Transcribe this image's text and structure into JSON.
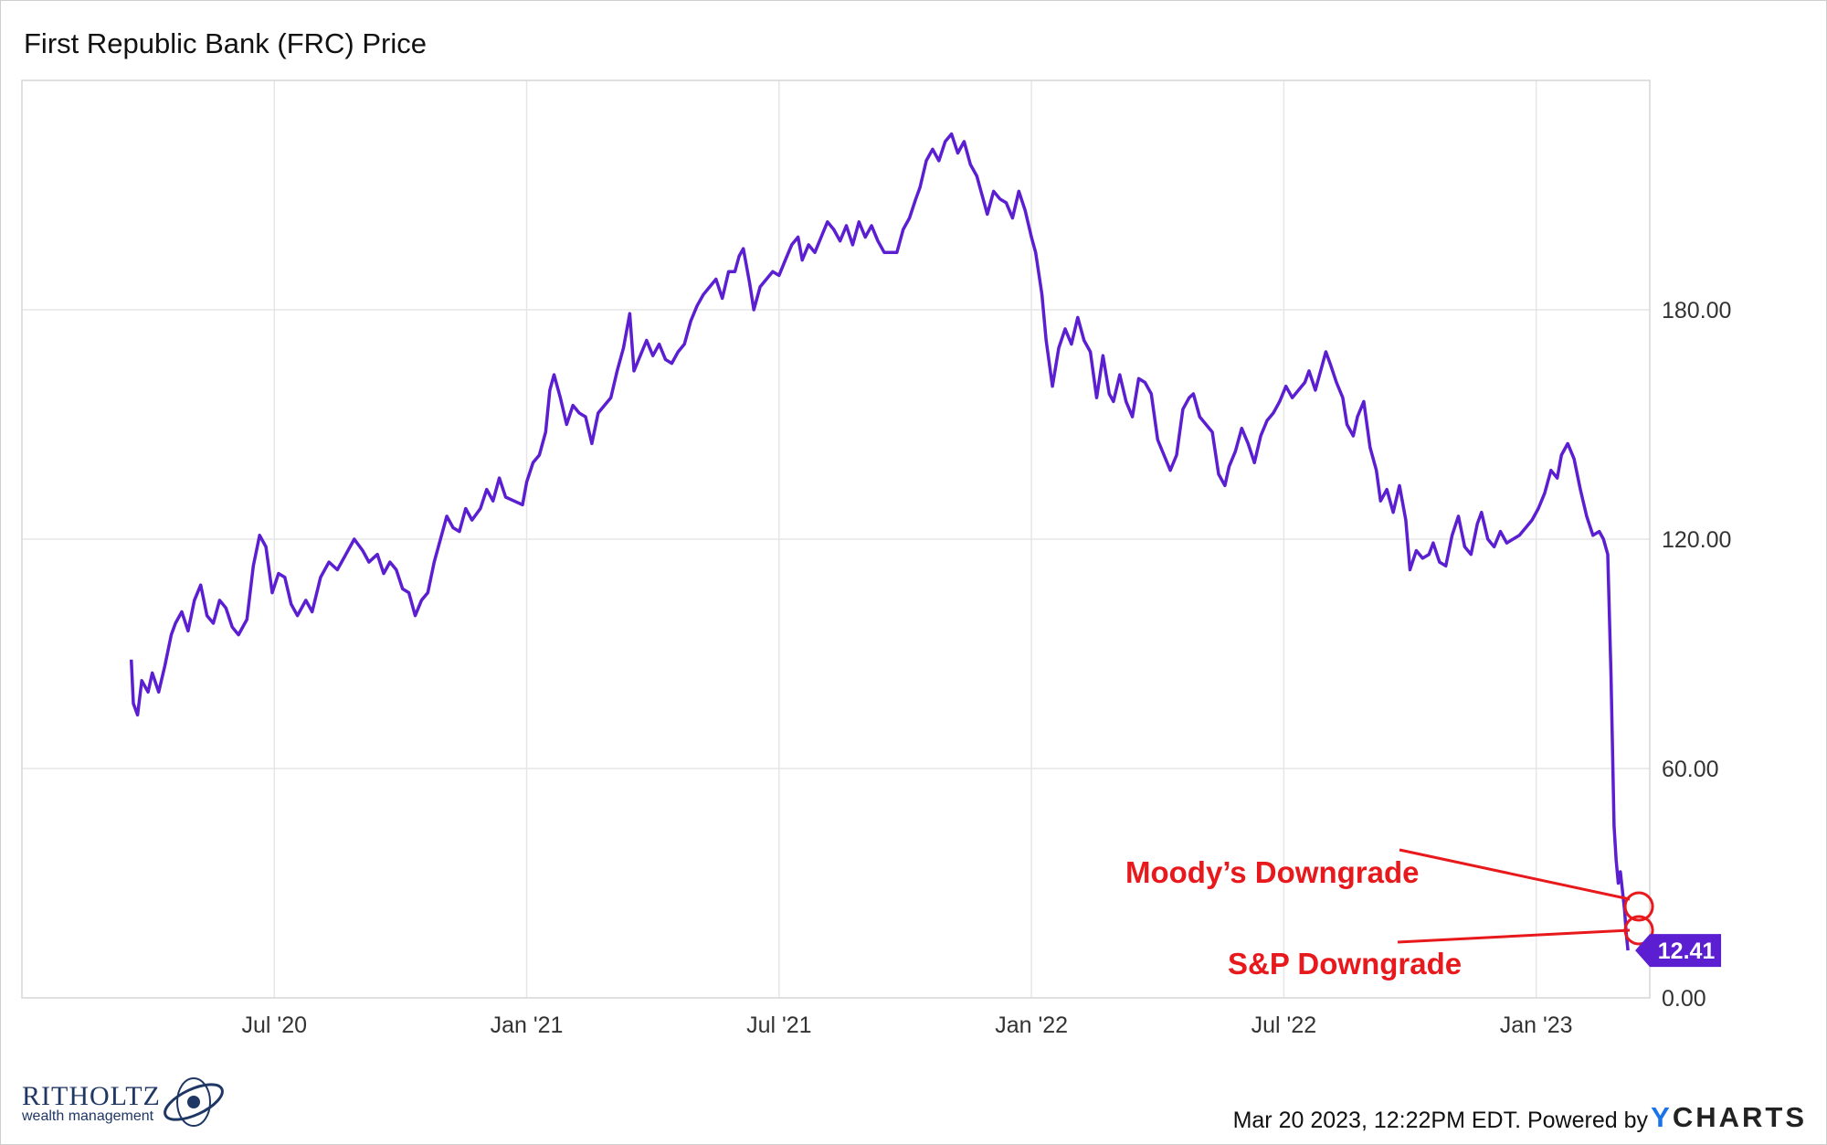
{
  "chart_data": {
    "type": "line",
    "title": "First Republic Bank (FRC) Price",
    "series_name": "FRC Price",
    "line_color": "#5b1ed1",
    "ylim": [
      0,
      240
    ],
    "y_ticks": [
      0,
      60,
      120,
      180
    ],
    "y_tick_labels": [
      "0.00",
      "60.00",
      "120.00",
      "180.00"
    ],
    "x_range_months": [
      0,
      38.7
    ],
    "x_ticks": [
      {
        "label": "Jul '20",
        "month": 6
      },
      {
        "label": "Jan '21",
        "month": 12
      },
      {
        "label": "Jul '21",
        "month": 18
      },
      {
        "label": "Jan '22",
        "month": 24
      },
      {
        "label": "Jul '22",
        "month": 30
      },
      {
        "label": "Jan '23",
        "month": 36
      }
    ],
    "points": [
      [
        2.6,
        88.5
      ],
      [
        2.65,
        77
      ],
      [
        2.75,
        74
      ],
      [
        2.85,
        83
      ],
      [
        3.0,
        80
      ],
      [
        3.1,
        85
      ],
      [
        3.25,
        80
      ],
      [
        3.4,
        87
      ],
      [
        3.55,
        95
      ],
      [
        3.65,
        98
      ],
      [
        3.8,
        101
      ],
      [
        3.95,
        96
      ],
      [
        4.1,
        104
      ],
      [
        4.25,
        108
      ],
      [
        4.4,
        100
      ],
      [
        4.55,
        98
      ],
      [
        4.7,
        104
      ],
      [
        4.85,
        102
      ],
      [
        5.0,
        97
      ],
      [
        5.15,
        95
      ],
      [
        5.35,
        99
      ],
      [
        5.5,
        113
      ],
      [
        5.65,
        121
      ],
      [
        5.8,
        118
      ],
      [
        5.95,
        106
      ],
      [
        6.1,
        111
      ],
      [
        6.25,
        110
      ],
      [
        6.4,
        103
      ],
      [
        6.55,
        100
      ],
      [
        6.75,
        104
      ],
      [
        6.9,
        101
      ],
      [
        7.1,
        110
      ],
      [
        7.3,
        114
      ],
      [
        7.5,
        112
      ],
      [
        7.7,
        116
      ],
      [
        7.9,
        120
      ],
      [
        8.1,
        117
      ],
      [
        8.25,
        114
      ],
      [
        8.45,
        116
      ],
      [
        8.6,
        111
      ],
      [
        8.75,
        114
      ],
      [
        8.9,
        112
      ],
      [
        9.05,
        107
      ],
      [
        9.2,
        106
      ],
      [
        9.35,
        100
      ],
      [
        9.5,
        104
      ],
      [
        9.65,
        106
      ],
      [
        9.8,
        114
      ],
      [
        9.95,
        120
      ],
      [
        10.1,
        126
      ],
      [
        10.25,
        123
      ],
      [
        10.4,
        122
      ],
      [
        10.55,
        128
      ],
      [
        10.7,
        125
      ],
      [
        10.9,
        128
      ],
      [
        11.05,
        133
      ],
      [
        11.2,
        130
      ],
      [
        11.35,
        136
      ],
      [
        11.5,
        131
      ],
      [
        11.7,
        130
      ],
      [
        11.9,
        129
      ],
      [
        12.0,
        135
      ],
      [
        12.15,
        140
      ],
      [
        12.3,
        142
      ],
      [
        12.45,
        148
      ],
      [
        12.55,
        159
      ],
      [
        12.65,
        163
      ],
      [
        12.8,
        157
      ],
      [
        12.95,
        150
      ],
      [
        13.1,
        155
      ],
      [
        13.25,
        153
      ],
      [
        13.4,
        152
      ],
      [
        13.55,
        145
      ],
      [
        13.7,
        153
      ],
      [
        13.85,
        155
      ],
      [
        14.0,
        157
      ],
      [
        14.15,
        164
      ],
      [
        14.3,
        170
      ],
      [
        14.45,
        179
      ],
      [
        14.55,
        164
      ],
      [
        14.7,
        168
      ],
      [
        14.85,
        172
      ],
      [
        15.0,
        168
      ],
      [
        15.15,
        171
      ],
      [
        15.3,
        167
      ],
      [
        15.45,
        166
      ],
      [
        15.6,
        169
      ],
      [
        15.75,
        171
      ],
      [
        15.9,
        177
      ],
      [
        16.05,
        181
      ],
      [
        16.2,
        184
      ],
      [
        16.35,
        186
      ],
      [
        16.5,
        188
      ],
      [
        16.65,
        183
      ],
      [
        16.8,
        190
      ],
      [
        16.95,
        190
      ],
      [
        17.05,
        194
      ],
      [
        17.15,
        196
      ],
      [
        17.3,
        187
      ],
      [
        17.4,
        180
      ],
      [
        17.55,
        186
      ],
      [
        17.7,
        188
      ],
      [
        17.85,
        190
      ],
      [
        18.0,
        189
      ],
      [
        18.15,
        193
      ],
      [
        18.3,
        197
      ],
      [
        18.45,
        199
      ],
      [
        18.55,
        193
      ],
      [
        18.7,
        197
      ],
      [
        18.85,
        195
      ],
      [
        19.0,
        199
      ],
      [
        19.15,
        203
      ],
      [
        19.3,
        201
      ],
      [
        19.45,
        198
      ],
      [
        19.6,
        202
      ],
      [
        19.75,
        197
      ],
      [
        19.9,
        203
      ],
      [
        20.05,
        199
      ],
      [
        20.2,
        202
      ],
      [
        20.35,
        198
      ],
      [
        20.5,
        195
      ],
      [
        20.65,
        195
      ],
      [
        20.8,
        195
      ],
      [
        20.95,
        201
      ],
      [
        21.1,
        204
      ],
      [
        21.25,
        209
      ],
      [
        21.35,
        212
      ],
      [
        21.5,
        219
      ],
      [
        21.65,
        222
      ],
      [
        21.8,
        219
      ],
      [
        21.95,
        224
      ],
      [
        22.1,
        226
      ],
      [
        22.25,
        221
      ],
      [
        22.4,
        224
      ],
      [
        22.55,
        218
      ],
      [
        22.7,
        215
      ],
      [
        22.85,
        209
      ],
      [
        22.95,
        205
      ],
      [
        23.1,
        211
      ],
      [
        23.25,
        209
      ],
      [
        23.4,
        208
      ],
      [
        23.55,
        204
      ],
      [
        23.7,
        211
      ],
      [
        23.85,
        206
      ],
      [
        24.0,
        199
      ],
      [
        24.1,
        195
      ],
      [
        24.25,
        184
      ],
      [
        24.35,
        172
      ],
      [
        24.5,
        160
      ],
      [
        24.65,
        170
      ],
      [
        24.8,
        175
      ],
      [
        24.95,
        171
      ],
      [
        25.1,
        178
      ],
      [
        25.25,
        172
      ],
      [
        25.4,
        169
      ],
      [
        25.55,
        157
      ],
      [
        25.7,
        168
      ],
      [
        25.85,
        158
      ],
      [
        25.95,
        156
      ],
      [
        26.1,
        163
      ],
      [
        26.25,
        156
      ],
      [
        26.4,
        152
      ],
      [
        26.55,
        162
      ],
      [
        26.7,
        161
      ],
      [
        26.85,
        158
      ],
      [
        27.0,
        146
      ],
      [
        27.15,
        142
      ],
      [
        27.3,
        138
      ],
      [
        27.45,
        142
      ],
      [
        27.6,
        154
      ],
      [
        27.75,
        157
      ],
      [
        27.85,
        158
      ],
      [
        28.0,
        152
      ],
      [
        28.15,
        150
      ],
      [
        28.3,
        148
      ],
      [
        28.45,
        137
      ],
      [
        28.6,
        134
      ],
      [
        28.7,
        139
      ],
      [
        28.85,
        143
      ],
      [
        29.0,
        149
      ],
      [
        29.15,
        145
      ],
      [
        29.3,
        140
      ],
      [
        29.45,
        147
      ],
      [
        29.6,
        151
      ],
      [
        29.75,
        153
      ],
      [
        29.9,
        156
      ],
      [
        30.05,
        160
      ],
      [
        30.2,
        157
      ],
      [
        30.35,
        159
      ],
      [
        30.5,
        161
      ],
      [
        30.6,
        164
      ],
      [
        30.75,
        159
      ],
      [
        30.9,
        165
      ],
      [
        31.0,
        169
      ],
      [
        31.1,
        166
      ],
      [
        31.25,
        161
      ],
      [
        31.4,
        157
      ],
      [
        31.5,
        150
      ],
      [
        31.65,
        147
      ],
      [
        31.75,
        152
      ],
      [
        31.9,
        156
      ],
      [
        32.05,
        144
      ],
      [
        32.2,
        138
      ],
      [
        32.3,
        130
      ],
      [
        32.45,
        133
      ],
      [
        32.6,
        127
      ],
      [
        32.75,
        134
      ],
      [
        32.9,
        125
      ],
      [
        33.0,
        112
      ],
      [
        33.15,
        117
      ],
      [
        33.3,
        115
      ],
      [
        33.45,
        116
      ],
      [
        33.55,
        119
      ],
      [
        33.7,
        114
      ],
      [
        33.85,
        113
      ],
      [
        34.0,
        121
      ],
      [
        34.15,
        126
      ],
      [
        34.3,
        118
      ],
      [
        34.45,
        116
      ],
      [
        34.6,
        124
      ],
      [
        34.7,
        127
      ],
      [
        34.85,
        120
      ],
      [
        35.0,
        118
      ],
      [
        35.15,
        122
      ],
      [
        35.3,
        119
      ],
      [
        35.45,
        120
      ],
      [
        35.6,
        121
      ],
      [
        35.75,
        123
      ],
      [
        35.9,
        125
      ],
      [
        36.05,
        128
      ],
      [
        36.2,
        132
      ],
      [
        36.35,
        138
      ],
      [
        36.5,
        136
      ],
      [
        36.6,
        142
      ],
      [
        36.75,
        145
      ],
      [
        36.9,
        141
      ],
      [
        37.05,
        133
      ],
      [
        37.2,
        126
      ],
      [
        37.35,
        121
      ],
      [
        37.5,
        122
      ],
      [
        37.6,
        120
      ],
      [
        37.7,
        116
      ],
      [
        37.78,
        84
      ],
      [
        37.85,
        45
      ],
      [
        37.9,
        36
      ],
      [
        37.95,
        30
      ],
      [
        38.0,
        33
      ],
      [
        38.05,
        28
      ],
      [
        38.1,
        23
      ],
      [
        38.14,
        17
      ],
      [
        38.18,
        12.41
      ]
    ],
    "last_value_label": "12.41",
    "annotations": [
      {
        "text": "Moody’s Downgrade",
        "color": "#e8191c"
      },
      {
        "text": "S&P Downgrade",
        "color": "#e8191c"
      }
    ]
  },
  "footer": {
    "timestamp": "Mar 20 2023, 12:22PM EDT. Powered by",
    "brand_y": "Y",
    "brand_rest": "CHARTS"
  },
  "logo": {
    "name": "RITHOLTZ",
    "subtitle": "wealth management"
  }
}
